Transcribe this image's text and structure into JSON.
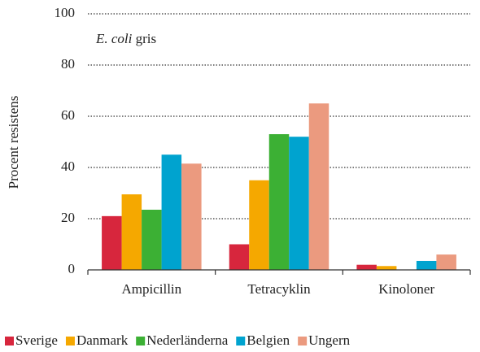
{
  "chart_data": {
    "type": "bar",
    "annotation": [
      "E. coli",
      "gris"
    ],
    "y_label": "Procent resistens",
    "categories": [
      "Ampicillin",
      "Tetracyklin",
      "Kinoloner"
    ],
    "series": [
      {
        "name": "Sverige",
        "color": "#d7263d",
        "values": [
          21,
          10,
          2
        ]
      },
      {
        "name": "Danmark",
        "color": "#f5a800",
        "values": [
          29.5,
          35,
          1.5
        ]
      },
      {
        "name": "Nederländerna",
        "color": "#3cb034",
        "values": [
          23.5,
          53,
          0
        ]
      },
      {
        "name": "Belgien",
        "color": "#00a3cf",
        "values": [
          45,
          52,
          3.5
        ]
      },
      {
        "name": "Ungern",
        "color": "#eb9a7f",
        "values": [
          41.5,
          65,
          6
        ]
      }
    ],
    "ylim": [
      0,
      100
    ],
    "yticks": [
      0,
      20,
      40,
      60,
      80,
      100
    ],
    "grid": true
  }
}
